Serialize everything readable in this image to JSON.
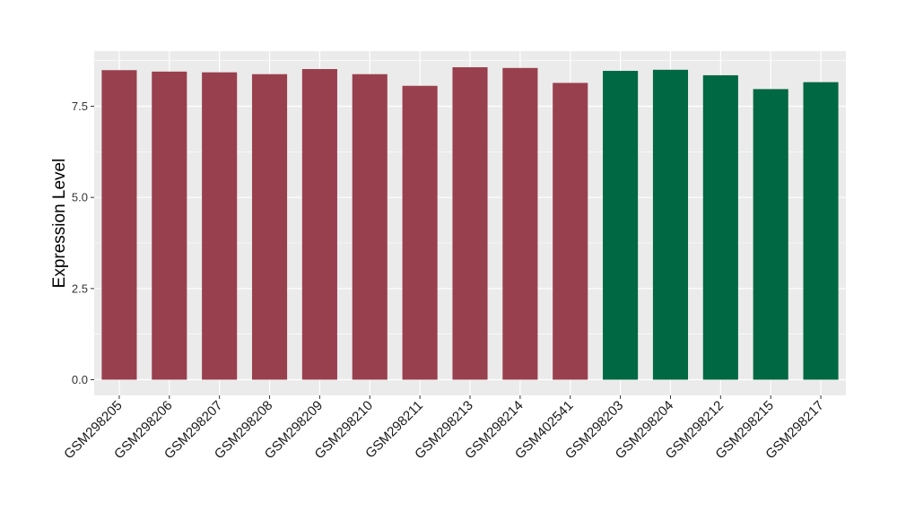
{
  "chart_data": {
    "type": "bar",
    "title": "",
    "xlabel": "",
    "ylabel": "Expression Level",
    "ylim": [
      0,
      8.8
    ],
    "yticks": [
      0.0,
      2.5,
      5.0,
      7.5
    ],
    "ytick_labels": [
      "0.0",
      "2.5",
      "5.0",
      "7.5"
    ],
    "grid": true,
    "legend": "none",
    "panel_color": "#ebebeb",
    "grid_color": "#ffffff",
    "categories": [
      "GSM298205",
      "GSM298206",
      "GSM298207",
      "GSM298208",
      "GSM298209",
      "GSM298210",
      "GSM298211",
      "GSM298213",
      "GSM298214",
      "GSM402541",
      "GSM298203",
      "GSM298204",
      "GSM298212",
      "GSM298215",
      "GSM298217"
    ],
    "values": [
      8.49,
      8.45,
      8.43,
      8.38,
      8.52,
      8.38,
      8.06,
      8.57,
      8.55,
      8.14,
      8.47,
      8.5,
      8.35,
      7.97,
      8.16
    ],
    "bar_colors": [
      "#99404f",
      "#99404f",
      "#99404f",
      "#99404f",
      "#99404f",
      "#99404f",
      "#99404f",
      "#99404f",
      "#99404f",
      "#99404f",
      "#006843",
      "#006843",
      "#006843",
      "#006843",
      "#006843"
    ]
  }
}
